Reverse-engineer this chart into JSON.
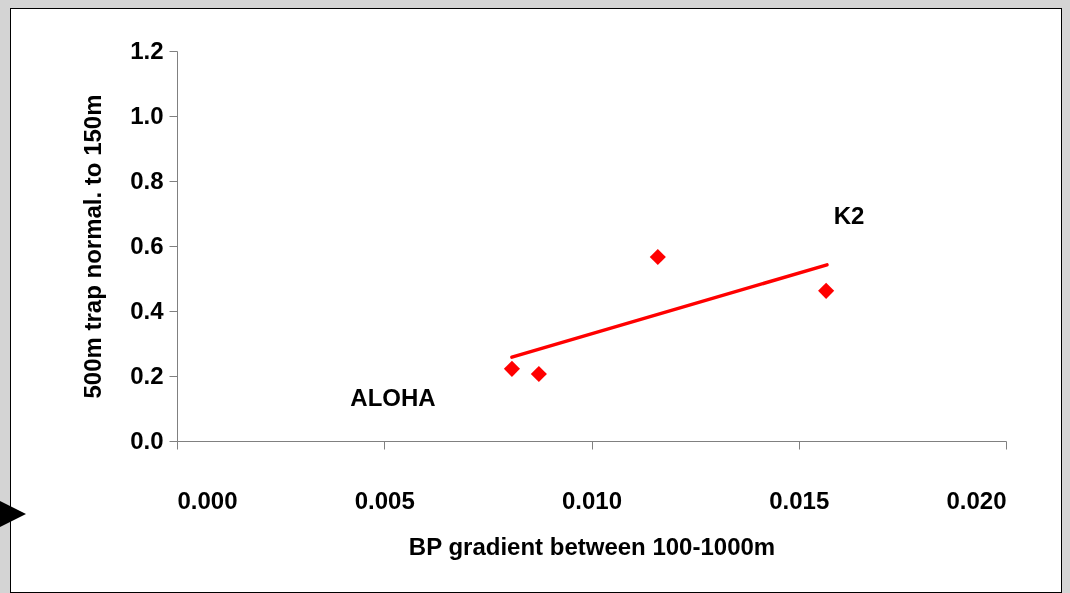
{
  "chart_data": {
    "type": "scatter",
    "xlabel": "BP gradient between 100-1000m",
    "ylabel": "500m trap normal. to 150m",
    "xlim": [
      0,
      0.02
    ],
    "ylim": [
      0,
      1.2
    ],
    "xticks": [
      {
        "value": 0,
        "label": "0.000"
      },
      {
        "value": 0.005,
        "label": "0.005"
      },
      {
        "value": 0.01,
        "label": "0.010"
      },
      {
        "value": 0.015,
        "label": "0.015"
      },
      {
        "value": 0.02,
        "label": "0.020"
      }
    ],
    "yticks": [
      {
        "value": 0,
        "label": "0.0"
      },
      0.2,
      0.4,
      0.6,
      0.8,
      {
        "value": 1,
        "label": "1.0"
      },
      1.2
    ],
    "grid": false,
    "marker": "diamond",
    "series": [
      {
        "color": "#ff0000",
        "x": [
          0.00808,
          0.00873,
          0.0116,
          0.01566
        ],
        "values": [
          0.222,
          0.206,
          0.566,
          0.462
        ]
      },
      {
        "type": "line",
        "color": "#ff0000",
        "marker": "none",
        "x": [
          0.00808,
          0.01568
        ],
        "values": [
          0.258,
          0.542
        ]
      }
    ],
    "annotations": [
      "K2",
      "ALOHA"
    ]
  }
}
